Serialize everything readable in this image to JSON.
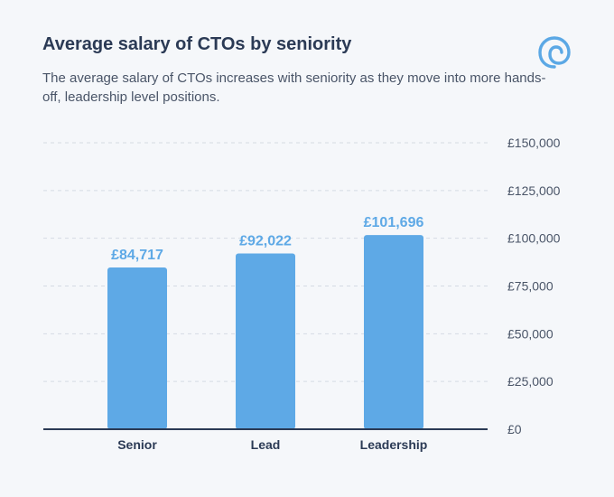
{
  "header": {
    "title": "Average salary of CTOs by seniority",
    "subtitle": "The average salary of CTOs increases with seniority as they move into more hands-off, leadership level positions."
  },
  "logo": {
    "icon": "spiral-logo-icon",
    "color": "#5ba8e5"
  },
  "colors": {
    "bar": "#5ea9e6",
    "data_label": "#5ea9e6",
    "baseline": "#2b3a55",
    "grid": "#d5dbe3"
  },
  "chart_data": {
    "type": "bar",
    "title": "Average salary of CTOs by seniority",
    "xlabel": "",
    "ylabel": "",
    "categories": [
      "Senior",
      "Lead",
      "Leadership"
    ],
    "values": [
      84717,
      92022,
      101696
    ],
    "data_labels": [
      "£84,717",
      "£92,022",
      "£101,696"
    ],
    "ylim": [
      0,
      150000
    ],
    "y_ticks": [
      0,
      25000,
      50000,
      75000,
      100000,
      125000,
      150000
    ],
    "y_tick_labels": [
      "£0",
      "£25,000",
      "£50,000",
      "£75,000",
      "£100,000",
      "£125,000",
      "£150,000"
    ],
    "y_axis_position": "right",
    "grid": true,
    "legend": "none"
  }
}
